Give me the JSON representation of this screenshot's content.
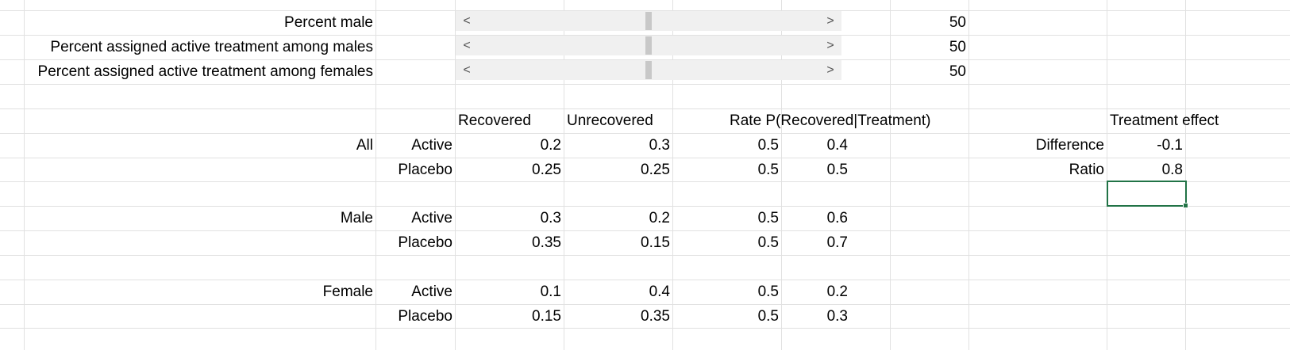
{
  "controls": [
    {
      "label": "Percent male",
      "value": "50",
      "slider_fraction": 0.5,
      "left_arrow": "<",
      "right_arrow": ">"
    },
    {
      "label": "Percent assigned active treatment among males",
      "value": "50",
      "slider_fraction": 0.5,
      "left_arrow": "<",
      "right_arrow": ">"
    },
    {
      "label": "Percent assigned active treatment among females",
      "value": "50",
      "slider_fraction": 0.5,
      "left_arrow": "<",
      "right_arrow": ">"
    }
  ],
  "table": {
    "headers": {
      "recovered": "Recovered",
      "unrecovered": "Unrecovered",
      "rate": "Rate P(Recovered|Treatment)"
    },
    "groups": [
      {
        "name": "All",
        "rows": [
          {
            "treatment": "Active",
            "recovered": "0.2",
            "unrecovered": "0.3",
            "p1": "0.5",
            "rate": "0.4"
          },
          {
            "treatment": "Placebo",
            "recovered": "0.25",
            "unrecovered": "0.25",
            "p1": "0.5",
            "rate": "0.5"
          }
        ]
      },
      {
        "name": "Male",
        "rows": [
          {
            "treatment": "Active",
            "recovered": "0.3",
            "unrecovered": "0.2",
            "p1": "0.5",
            "rate": "0.6"
          },
          {
            "treatment": "Placebo",
            "recovered": "0.35",
            "unrecovered": "0.15",
            "p1": "0.5",
            "rate": "0.7"
          }
        ]
      },
      {
        "name": "Female",
        "rows": [
          {
            "treatment": "Active",
            "recovered": "0.1",
            "unrecovered": "0.4",
            "p1": "0.5",
            "rate": "0.2"
          },
          {
            "treatment": "Placebo",
            "recovered": "0.15",
            "unrecovered": "0.35",
            "p1": "0.5",
            "rate": "0.3"
          }
        ]
      }
    ]
  },
  "effect": {
    "header": "Treatment effect",
    "difference_label": "Difference",
    "difference_value": "-0.1",
    "ratio_label": "Ratio",
    "ratio_value": "0.8"
  },
  "colors": {
    "gridline": "#e1e1e1",
    "scrollbar_track": "#f0f0f0",
    "scrollbar_thumb": "#c8c8c8",
    "selection": "#217346"
  }
}
